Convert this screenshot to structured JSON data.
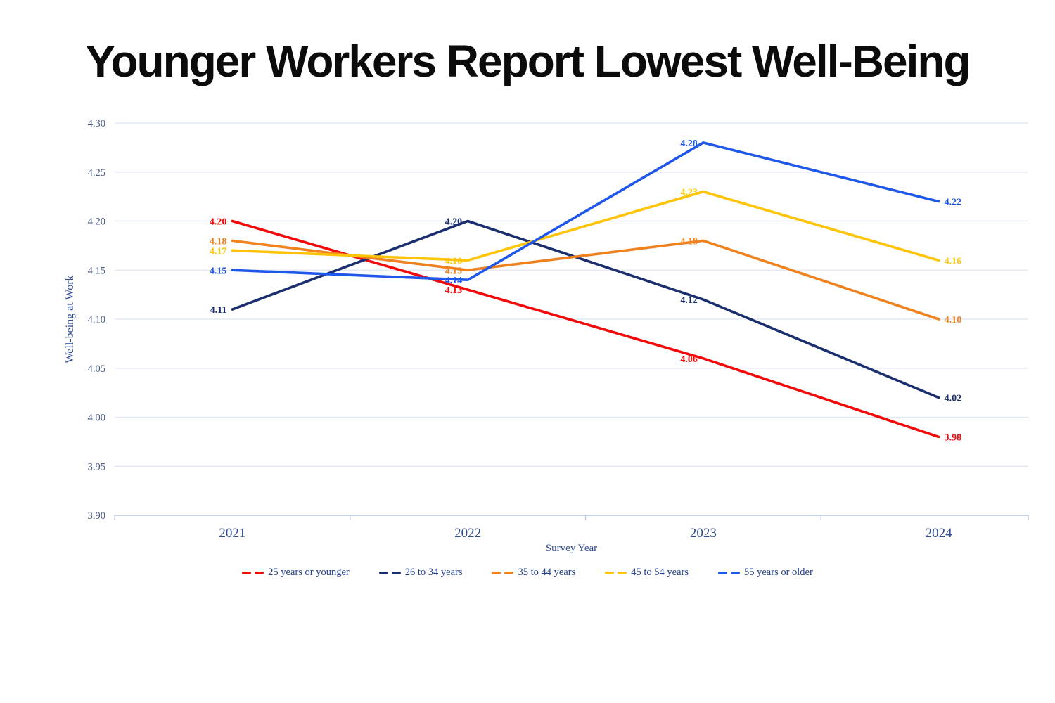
{
  "chart_data": {
    "type": "line",
    "title": "Younger Workers Report Lowest Well-Being",
    "xlabel": "Survey Year",
    "ylabel": "Well-being at Work",
    "categories": [
      "2021",
      "2022",
      "2023",
      "2024"
    ],
    "series": [
      {
        "name": "25 years or younger",
        "color": "#f20a0a",
        "values": [
          4.2,
          4.13,
          4.06,
          3.98
        ]
      },
      {
        "name": "26 to 34 years",
        "color": "#1b2f6e",
        "values": [
          4.11,
          4.2,
          4.12,
          4.02
        ]
      },
      {
        "name": "35 to 44 years",
        "color": "#f0811f",
        "values": [
          4.18,
          4.15,
          4.18,
          4.1
        ]
      },
      {
        "name": "45 to 54 years",
        "color": "#ffc405",
        "values": [
          4.17,
          4.16,
          4.23,
          4.16
        ]
      },
      {
        "name": "55 years or older",
        "color": "#1e57e9",
        "values": [
          4.15,
          4.14,
          4.28,
          4.22
        ]
      }
    ],
    "ylim": [
      3.9,
      4.3
    ],
    "y_ticks": [
      "3.90",
      "3.95",
      "4.00",
      "4.05",
      "4.10",
      "4.15",
      "4.20",
      "4.25",
      "4.30"
    ],
    "grid": true,
    "data_labels": true,
    "legend_position": "bottom",
    "style": {
      "grid_color": "#e4e9f3",
      "axis_color": "#bcc8e2",
      "y_tick_label_color": "#475a83",
      "x_tick_label_color": "#2e4c93",
      "title_color": "#0b0b0b"
    }
  }
}
